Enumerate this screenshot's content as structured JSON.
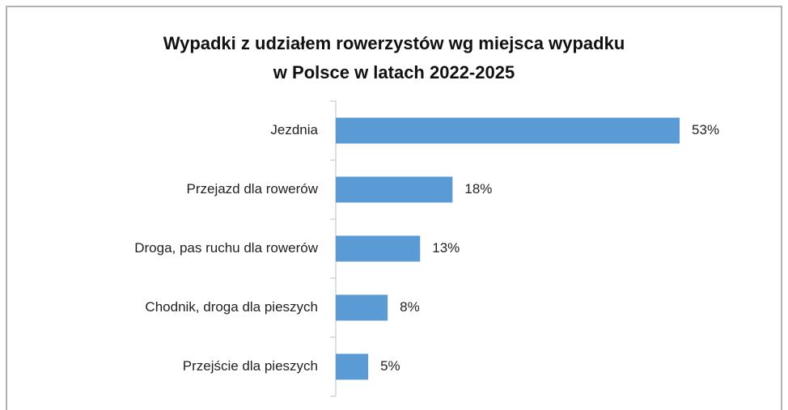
{
  "chart_data": {
    "type": "bar",
    "orientation": "horizontal",
    "title": "Wypadki z udziałem rowerzystów wg miejsca wypadku\nw Polsce w latach 2022-2025",
    "categories": [
      "Jezdnia",
      "Przejazd dla rowerów",
      "Droga, pas ruchu dla rowerów",
      "Chodnik, droga dla pieszych",
      "Przejście dla pieszych"
    ],
    "values": [
      53,
      18,
      13,
      8,
      5
    ],
    "value_labels": [
      "53%",
      "18%",
      "13%",
      "8%",
      "5%"
    ],
    "color": "#5b9bd5"
  }
}
